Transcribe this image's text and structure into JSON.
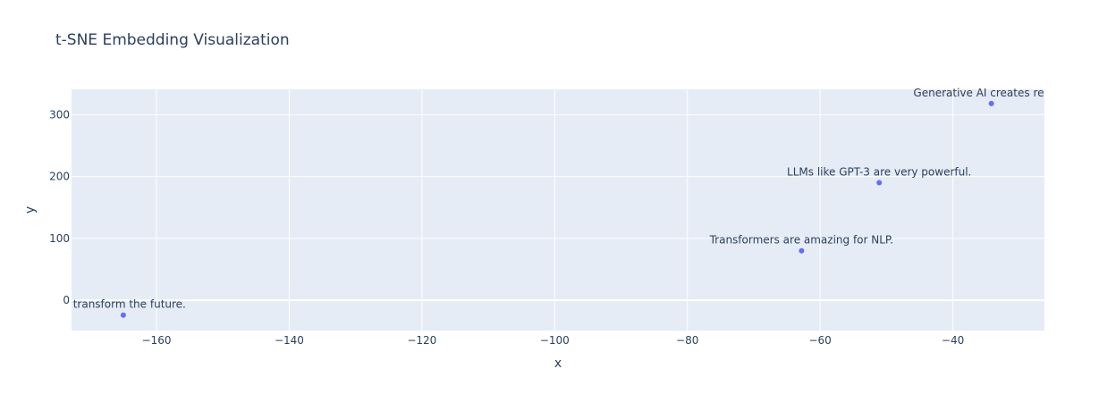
{
  "chart_data": {
    "type": "scatter",
    "title": "t-SNE Embedding Visualization",
    "xlabel": "x",
    "ylabel": "y",
    "xlim": [
      -172.8,
      -26.2
    ],
    "ylim": [
      -49,
      341
    ],
    "x_ticks": [
      -160,
      -140,
      -120,
      -100,
      -80,
      -60,
      -40
    ],
    "y_ticks": [
      0,
      100,
      200,
      300
    ],
    "grid": true,
    "colors": {
      "marker": "#636efa",
      "plot_bg": "#e5ecf6",
      "grid": "#ffffff",
      "text": "#2a3f5f"
    },
    "points": [
      {
        "x": -165,
        "y": -24,
        "label": "ill transform the future."
      },
      {
        "x": -62.8,
        "y": 80,
        "label": "Transformers are amazing for NLP."
      },
      {
        "x": -51.1,
        "y": 190,
        "label": "LLMs like GPT-3 are very powerful."
      },
      {
        "x": -34.2,
        "y": 318,
        "label": "Generative AI creates realisti"
      }
    ]
  }
}
